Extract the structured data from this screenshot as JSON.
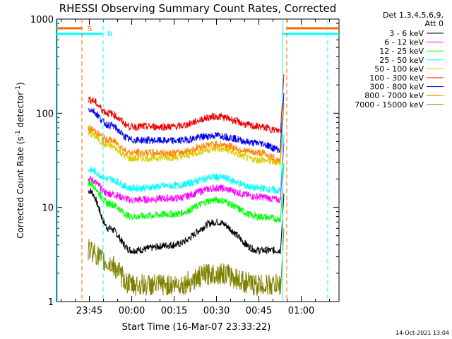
{
  "chart_data": {
    "type": "line",
    "title": "RHESSI Observing Summary Count Rates, Corrected",
    "xlabel": "Start Time (16-Mar-07 23:33:22)",
    "ylabel": "Corrected Count Rate (s⁻¹ detector⁻¹)",
    "ylabel_main": "Corrected Count Rate (s",
    "ylabel_sup1": "-1",
    "ylabel_mid": " detector",
    "ylabel_sup2": "-1",
    "ylabel_end": ")",
    "y_scale": "log",
    "ylim": [
      1,
      1000
    ],
    "xlim": [
      "23:33:22",
      "01:10:00"
    ],
    "x_ticks": [
      "23:45",
      "00:00",
      "00:15",
      "00:30",
      "00:45",
      "01:00"
    ],
    "y_ticks": [
      "1",
      "10",
      "100",
      "1000"
    ],
    "legend_header": [
      "Det 1,3,4,5,6,9,",
      "Att 0"
    ],
    "legend_position": "right",
    "series": [
      {
        "name": "3 - 6 keV",
        "color": "#000000",
        "values_at_x": [
          [
            "23:45",
            15
          ],
          [
            "23:52",
            6
          ],
          [
            "00:00",
            3.5
          ],
          [
            "00:15",
            4
          ],
          [
            "00:30",
            7
          ],
          [
            "00:45",
            3.5
          ],
          [
            "00:53",
            3.5
          ]
        ]
      },
      {
        "name": "6 - 12 keV",
        "color": "#ff00ff",
        "values_at_x": [
          [
            "23:45",
            20
          ],
          [
            "23:52",
            14
          ],
          [
            "00:00",
            12
          ],
          [
            "00:15",
            12.5
          ],
          [
            "00:30",
            16
          ],
          [
            "00:45",
            13
          ],
          [
            "00:53",
            12
          ]
        ]
      },
      {
        "name": "12 - 25 keV",
        "color": "#00ff00",
        "values_at_x": [
          [
            "23:45",
            18
          ],
          [
            "23:52",
            11
          ],
          [
            "00:00",
            8
          ],
          [
            "00:15",
            8.5
          ],
          [
            "00:30",
            12
          ],
          [
            "00:45",
            8
          ],
          [
            "00:53",
            7.5
          ]
        ]
      },
      {
        "name": "25 - 50 keV",
        "color": "#00ffff",
        "values_at_x": [
          [
            "23:45",
            25
          ],
          [
            "23:52",
            20
          ],
          [
            "00:00",
            16
          ],
          [
            "00:15",
            17
          ],
          [
            "00:30",
            21
          ],
          [
            "00:45",
            16
          ],
          [
            "00:53",
            15
          ]
        ]
      },
      {
        "name": "50 - 100 keV",
        "color": "#ddcc00",
        "values_at_x": [
          [
            "23:45",
            60
          ],
          [
            "23:52",
            45
          ],
          [
            "00:00",
            33
          ],
          [
            "00:15",
            34
          ],
          [
            "00:30",
            42
          ],
          [
            "00:45",
            32
          ],
          [
            "00:53",
            30
          ]
        ]
      },
      {
        "name": "100 - 300 keV",
        "color": "#ee0000",
        "values_at_x": [
          [
            "23:45",
            140
          ],
          [
            "23:52",
            100
          ],
          [
            "00:00",
            72
          ],
          [
            "00:15",
            72
          ],
          [
            "00:30",
            92
          ],
          [
            "00:45",
            72
          ],
          [
            "00:53",
            65
          ]
        ]
      },
      {
        "name": "300 - 800 keV",
        "color": "#0000ee",
        "values_at_x": [
          [
            "23:45",
            110
          ],
          [
            "23:52",
            75
          ],
          [
            "00:00",
            52
          ],
          [
            "00:15",
            51
          ],
          [
            "00:30",
            58
          ],
          [
            "00:45",
            48
          ],
          [
            "00:53",
            41
          ]
        ]
      },
      {
        "name": "800 - 7000 keV",
        "color": "#ff8800",
        "values_at_x": [
          [
            "23:45",
            68
          ],
          [
            "23:52",
            52
          ],
          [
            "00:00",
            38
          ],
          [
            "00:15",
            38
          ],
          [
            "00:30",
            47
          ],
          [
            "00:45",
            38
          ],
          [
            "00:53",
            32
          ]
        ]
      },
      {
        "name": "7000 - 15000 keV",
        "color": "#808000",
        "values_at_x": [
          [
            "23:45",
            3.5
          ],
          [
            "23:52",
            2.5
          ],
          [
            "00:00",
            1.5
          ],
          [
            "00:15",
            1.5
          ],
          [
            "00:30",
            2
          ],
          [
            "00:45",
            1.5
          ],
          [
            "00:53",
            1.5
          ]
        ]
      }
    ],
    "flags": [
      {
        "label": "S",
        "color": "#ff6600"
      },
      {
        "label": "N",
        "color": "#00ffff"
      }
    ]
  },
  "footer_date": "14-Oct-2021 13:04"
}
